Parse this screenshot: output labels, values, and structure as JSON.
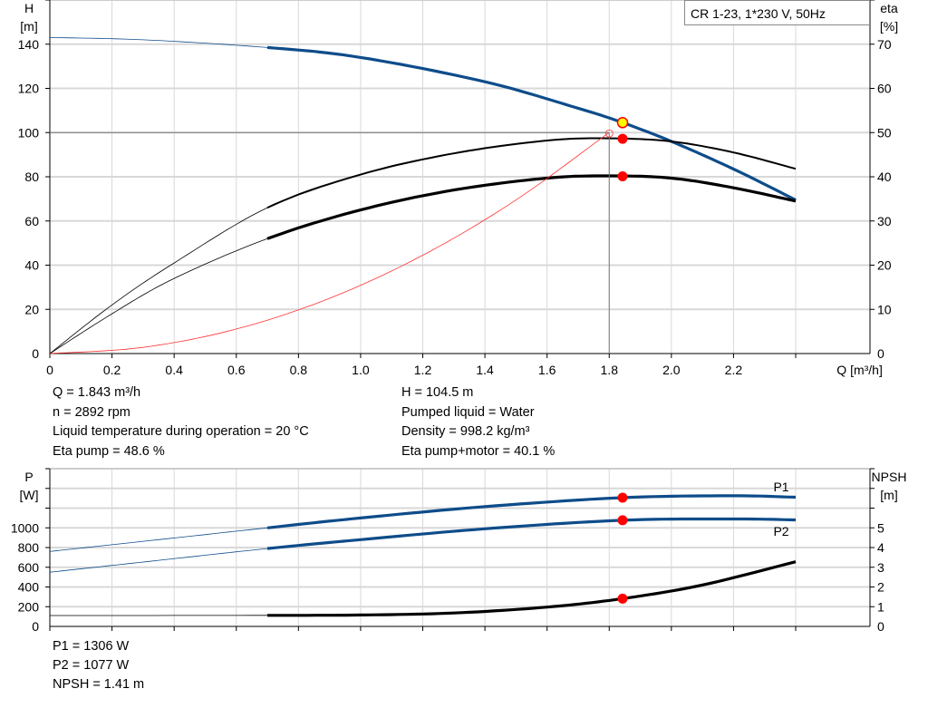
{
  "chart_data": [
    {
      "type": "line",
      "title": "CR 1-23, 1*230 V, 50Hz",
      "xlabel": "Q [m³/h]",
      "ylabel": "H\n[m]",
      "y2label": "eta\n[%]",
      "xlim": [
        0,
        2.6
      ],
      "ylim": [
        0,
        160
      ],
      "y2lim": [
        0,
        80
      ],
      "xticks": [
        "0",
        "0.2",
        "0.4",
        "0.6",
        "0.8",
        "1.0",
        "1.2",
        "1.4",
        "1.6",
        "1.8",
        "2.0",
        "2.2"
      ],
      "yticks": [
        "0",
        "20",
        "40",
        "60",
        "80",
        "100",
        "120",
        "140"
      ],
      "y2ticks": [
        "0",
        "10",
        "20",
        "30",
        "40",
        "50",
        "60",
        "70"
      ],
      "grid": true,
      "series": [
        {
          "id": "H",
          "axis": "left",
          "color": "#0e4c8a",
          "thick_from": 0.7,
          "points": [
            [
              0,
              143
            ],
            [
              0.3,
              142
            ],
            [
              0.7,
              138.5
            ],
            [
              1.0,
              134
            ],
            [
              1.4,
              123
            ],
            [
              1.7,
              111
            ],
            [
              1.843,
              104.5
            ],
            [
              2.0,
              96
            ],
            [
              2.2,
              83.5
            ],
            [
              2.4,
              69.5
            ]
          ]
        },
        {
          "id": "eta_pump",
          "axis": "right",
          "color": "#000000",
          "thick_from": 0.7,
          "points": [
            [
              0,
              0
            ],
            [
              0.2,
              11
            ],
            [
              0.4,
              20.5
            ],
            [
              0.7,
              33
            ],
            [
              1.0,
              40.5
            ],
            [
              1.3,
              45.3
            ],
            [
              1.6,
              48.2
            ],
            [
              1.8,
              48.7
            ],
            [
              2.0,
              48
            ],
            [
              2.2,
              45.5
            ],
            [
              2.4,
              41.8
            ]
          ]
        },
        {
          "id": "eta_pump_motor",
          "axis": "right",
          "color": "#000000",
          "thick_from": 0.7,
          "points": [
            [
              0,
              0
            ],
            [
              0.2,
              9
            ],
            [
              0.4,
              17
            ],
            [
              0.7,
              26
            ],
            [
              1.0,
              32.5
            ],
            [
              1.3,
              37
            ],
            [
              1.6,
              39.7
            ],
            [
              1.8,
              40.2
            ],
            [
              2.0,
              39.7
            ],
            [
              2.2,
              37.5
            ],
            [
              2.4,
              34.5
            ]
          ]
        },
        {
          "id": "system",
          "axis": "left",
          "color": "#ff3333",
          "thin": true,
          "points": [
            [
              0,
              0
            ],
            [
              0.3,
              2.8
            ],
            [
              0.6,
              11.1
            ],
            [
              0.9,
              25
            ],
            [
              1.2,
              44.5
            ],
            [
              1.5,
              69.5
            ],
            [
              1.8,
              100.1
            ]
          ]
        }
      ],
      "duty_point": {
        "Q": 1.8,
        "H": 100
      },
      "operating_point": {
        "Q": 1.843,
        "H": 104.5,
        "eta_pump": 48.6,
        "eta_total": 40.1
      }
    },
    {
      "type": "line",
      "ylabel": "P\n[W]",
      "y2label": "NPSH\n[m]",
      "xlim": [
        0,
        2.6
      ],
      "ylim": [
        0,
        1600
      ],
      "y2lim": [
        0,
        8
      ],
      "yticks": [
        "0",
        "200",
        "400",
        "600",
        "800",
        "1000"
      ],
      "y2ticks": [
        "0",
        "1",
        "2",
        "3",
        "4",
        "5"
      ],
      "grid": true,
      "series": [
        {
          "id": "P1",
          "name": "P1",
          "axis": "left",
          "color": "#0e4c8a",
          "thick_from": 0.7,
          "points": [
            [
              0,
              760
            ],
            [
              0.35,
              880
            ],
            [
              0.7,
              1000
            ],
            [
              1.0,
              1100
            ],
            [
              1.4,
              1215
            ],
            [
              1.843,
              1306
            ],
            [
              2.2,
              1325
            ],
            [
              2.4,
              1310
            ]
          ]
        },
        {
          "id": "P2",
          "name": "P2",
          "axis": "left",
          "color": "#0e4c8a",
          "thick_from": 0.7,
          "points": [
            [
              0,
              550
            ],
            [
              0.35,
              670
            ],
            [
              0.7,
              790
            ],
            [
              1.0,
              880
            ],
            [
              1.4,
              990
            ],
            [
              1.843,
              1077
            ],
            [
              2.2,
              1090
            ],
            [
              2.4,
              1080
            ]
          ]
        },
        {
          "id": "NPSH",
          "axis": "right",
          "color": "#000000",
          "thick_from": 0.7,
          "points": [
            [
              0,
              0.55
            ],
            [
              0.7,
              0.56
            ],
            [
              1.0,
              0.58
            ],
            [
              1.3,
              0.68
            ],
            [
              1.6,
              0.98
            ],
            [
              1.843,
              1.41
            ],
            [
              2.1,
              2.1
            ],
            [
              2.4,
              3.28
            ]
          ]
        }
      ],
      "operating_point": {
        "Q": 1.843,
        "P1": 1306,
        "P2": 1077,
        "NPSH": 1.41
      }
    }
  ],
  "results": {
    "q": "Q = 1.843 m³/h",
    "n": "n = 2892 rpm",
    "temp": "Liquid temperature during operation = 20 °C",
    "eta_pump": "Eta pump = 48.6 %",
    "h": "H = 104.5 m",
    "liquid": "Pumped liquid = Water",
    "density": "Density = 998.2 kg/m³",
    "eta_total": "Eta pump+motor = 40.1 %",
    "p1": "P1 = 1306 W",
    "p2": "P2 = 1077 W",
    "npsh": "NPSH = 1.41 m"
  }
}
